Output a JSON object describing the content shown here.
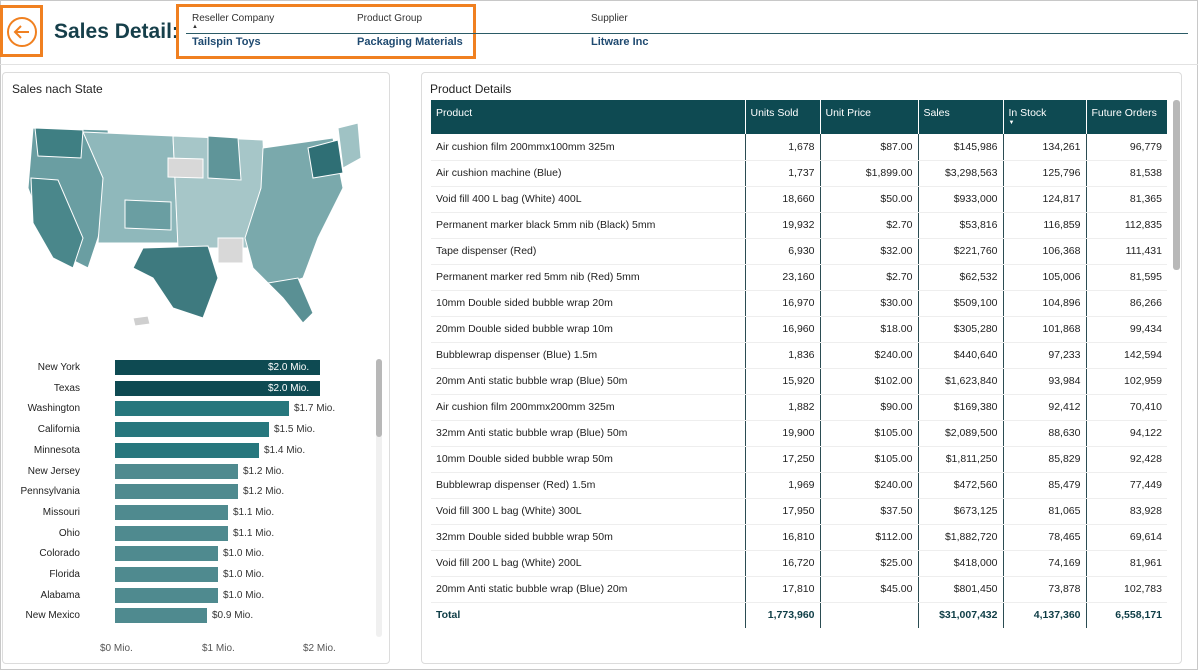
{
  "header": {
    "title": "Sales Detail:",
    "slicers": [
      {
        "label": "Reseller Company",
        "value": "Tailspin Toys"
      },
      {
        "label": "Product Group",
        "value": "Packaging Materials"
      },
      {
        "label": "Supplier",
        "value": "Litware Inc"
      }
    ]
  },
  "colors": {
    "accent_orange": "#f08020",
    "header_teal": "#0e4a52",
    "title_navy": "#163f4a",
    "bar_dark": "#0e4a52",
    "bar_mid": "#27777d",
    "bar_light": "#4f8a8f"
  },
  "left_panel": {
    "title": "Sales nach State",
    "axis_ticks": [
      "$0 Mio.",
      "$1 Mio.",
      "$2 Mio."
    ]
  },
  "chart_data": {
    "type": "bar",
    "orientation": "horizontal",
    "title": "Sales nach State",
    "categories": [
      "New York",
      "Texas",
      "Washington",
      "California",
      "Minnesota",
      "New Jersey",
      "Pennsylvania",
      "Missouri",
      "Ohio",
      "Colorado",
      "Florida",
      "Alabama",
      "New Mexico"
    ],
    "values": [
      2.0,
      2.0,
      1.7,
      1.5,
      1.4,
      1.2,
      1.2,
      1.1,
      1.1,
      1.0,
      1.0,
      1.0,
      0.9
    ],
    "value_labels": [
      "$2.0 Mio.",
      "$2.0 Mio.",
      "$1.7 Mio.",
      "$1.5 Mio.",
      "$1.4 Mio.",
      "$1.2 Mio.",
      "$1.2 Mio.",
      "$1.1 Mio.",
      "$1.1 Mio.",
      "$1.0 Mio.",
      "$1.0 Mio.",
      "$1.0 Mio.",
      "$0.9 Mio."
    ],
    "xlim": [
      0,
      2.0
    ],
    "grid": false
  },
  "product_table": {
    "title": "Product Details",
    "columns": [
      "Product",
      "Units Sold",
      "Unit Price",
      "Sales",
      "In Stock",
      "Future Orders"
    ],
    "rows": [
      [
        "Air cushion film 200mmx100mm 325m",
        "1,678",
        "$87.00",
        "$145,986",
        "134,261",
        "96,779"
      ],
      [
        "Air cushion machine (Blue)",
        "1,737",
        "$1,899.00",
        "$3,298,563",
        "125,796",
        "81,538"
      ],
      [
        "Void fill 400 L bag (White) 400L",
        "18,660",
        "$50.00",
        "$933,000",
        "124,817",
        "81,365"
      ],
      [
        "Permanent marker black 5mm nib (Black) 5mm",
        "19,932",
        "$2.70",
        "$53,816",
        "116,859",
        "112,835"
      ],
      [
        "Tape dispenser (Red)",
        "6,930",
        "$32.00",
        "$221,760",
        "106,368",
        "111,431"
      ],
      [
        "Permanent marker red 5mm nib (Red) 5mm",
        "23,160",
        "$2.70",
        "$62,532",
        "105,006",
        "81,595"
      ],
      [
        "10mm Double sided bubble wrap 20m",
        "16,970",
        "$30.00",
        "$509,100",
        "104,896",
        "86,266"
      ],
      [
        "20mm Double sided bubble wrap 10m",
        "16,960",
        "$18.00",
        "$305,280",
        "101,868",
        "99,434"
      ],
      [
        "Bubblewrap dispenser (Blue) 1.5m",
        "1,836",
        "$240.00",
        "$440,640",
        "97,233",
        "142,594"
      ],
      [
        "20mm Anti static bubble wrap (Blue) 50m",
        "15,920",
        "$102.00",
        "$1,623,840",
        "93,984",
        "102,959"
      ],
      [
        "Air cushion film 200mmx200mm 325m",
        "1,882",
        "$90.00",
        "$169,380",
        "92,412",
        "70,410"
      ],
      [
        "32mm Anti static bubble wrap (Blue) 50m",
        "19,900",
        "$105.00",
        "$2,089,500",
        "88,630",
        "94,122"
      ],
      [
        "10mm Double sided bubble wrap 50m",
        "17,250",
        "$105.00",
        "$1,811,250",
        "85,829",
        "92,428"
      ],
      [
        "Bubblewrap dispenser (Red) 1.5m",
        "1,969",
        "$240.00",
        "$472,560",
        "85,479",
        "77,449"
      ],
      [
        "Void fill 300 L bag (White) 300L",
        "17,950",
        "$37.50",
        "$673,125",
        "81,065",
        "83,928"
      ],
      [
        "32mm Double sided bubble wrap 50m",
        "16,810",
        "$112.00",
        "$1,882,720",
        "78,465",
        "69,614"
      ],
      [
        "Void fill 200 L bag (White) 200L",
        "16,720",
        "$25.00",
        "$418,000",
        "74,169",
        "81,961"
      ],
      [
        "20mm Anti static bubble wrap (Blue) 20m",
        "17,810",
        "$45.00",
        "$801,450",
        "73,878",
        "102,783"
      ]
    ],
    "total": [
      "Total",
      "1,773,960",
      "",
      "$31,007,432",
      "4,137,360",
      "6,558,171"
    ]
  }
}
